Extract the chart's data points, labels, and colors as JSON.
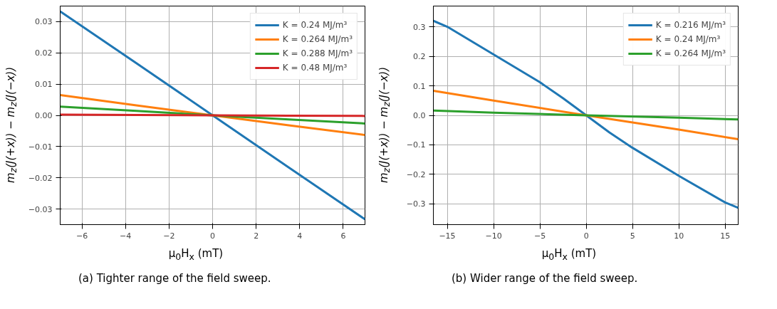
{
  "chart_data": [
    {
      "type": "line",
      "xlabel": "μ$_{0}$H$_{x}$ (mT)",
      "ylabel": "m$_{z}$(J(+x)) − m$_{z}$(J(−x))",
      "annotations": [
        "(a) Tighter range of the field sweep."
      ],
      "x": [
        -7,
        -3.5,
        0,
        3.5,
        7
      ],
      "series": [
        {
          "name": "K = 0.24 MJ/m³",
          "color": "#1f77b4",
          "values": [
            0.0333,
            0.0167,
            0,
            -0.0167,
            -0.0333
          ]
        },
        {
          "name": "K = 0.264 MJ/m³",
          "color": "#ff7f0e",
          "values": [
            0.0065,
            0.0032,
            0,
            -0.0032,
            -0.0063
          ]
        },
        {
          "name": "K = 0.288 MJ/m³",
          "color": "#2ca02c",
          "values": [
            0.0028,
            0.0014,
            0,
            -0.0013,
            -0.0026
          ]
        },
        {
          "name": "K = 0.48 MJ/m³",
          "color": "#d62728",
          "values": [
            0.0002,
            0.0001,
            0,
            -0.0001,
            -0.0002
          ]
        }
      ],
      "xlim": [
        -7,
        7
      ],
      "ylim": [
        -0.035,
        0.035
      ],
      "xticks": [
        {
          "value": -6,
          "label": "−6"
        },
        {
          "value": -4,
          "label": "−4"
        },
        {
          "value": -2,
          "label": "−2"
        },
        0,
        2,
        4,
        6
      ],
      "yticks": [
        {
          "value": -0.03,
          "label": "−0.03"
        },
        {
          "value": -0.02,
          "label": "−0.02"
        },
        {
          "value": -0.01,
          "label": "−0.01"
        },
        {
          "value": 0,
          "label": "0.00"
        },
        0.01,
        0.02,
        0.03
      ],
      "grid": true,
      "legend": "top right",
      "marker": "none",
      "line_style": "solid"
    },
    {
      "type": "line",
      "xlabel": "μ$_{0}$H$_{x}$ (mT)",
      "ylabel": "m$_{z}$(J(+x)) − m$_{z}$(J(−x))",
      "annotations": [
        "(b) Wider range of the field sweep."
      ],
      "series": [
        {
          "name": "K = 0.216 MJ/m³",
          "color": "#1f77b4",
          "x": [
            -16.5,
            -15,
            -10,
            -5,
            -2.5,
            0,
            2.5,
            5,
            10,
            15,
            16.4
          ],
          "values": [
            0.32,
            0.3,
            0.206,
            0.112,
            0.058,
            0,
            -0.058,
            -0.11,
            -0.205,
            -0.295,
            -0.313
          ]
        },
        {
          "name": "K = 0.24 MJ/m³",
          "color": "#ff7f0e",
          "x": [
            -16.5,
            -10,
            0,
            10,
            16.4
          ],
          "values": [
            0.083,
            0.05,
            0,
            -0.048,
            -0.081
          ]
        },
        {
          "name": "K = 0.264 MJ/m³",
          "color": "#2ca02c",
          "x": [
            -16.5,
            -10,
            0,
            10,
            16.4
          ],
          "values": [
            0.016,
            0.009,
            0,
            -0.008,
            -0.014
          ]
        }
      ],
      "xlim": [
        -16.5,
        16.4
      ],
      "ylim": [
        -0.37,
        0.37
      ],
      "xticks": [
        {
          "value": -15,
          "label": "−15"
        },
        {
          "value": -10,
          "label": "−10"
        },
        {
          "value": -5,
          "label": "−5"
        },
        0,
        5,
        10,
        15
      ],
      "yticks": [
        {
          "value": -0.3,
          "label": "−0.3"
        },
        {
          "value": -0.2,
          "label": "−0.2"
        },
        {
          "value": -0.1,
          "label": "−0.1"
        },
        {
          "value": 0,
          "label": "0.0"
        },
        0.1,
        0.2,
        0.3
      ],
      "grid": true,
      "legend": "top right",
      "marker": "none",
      "line_style": "solid"
    }
  ]
}
